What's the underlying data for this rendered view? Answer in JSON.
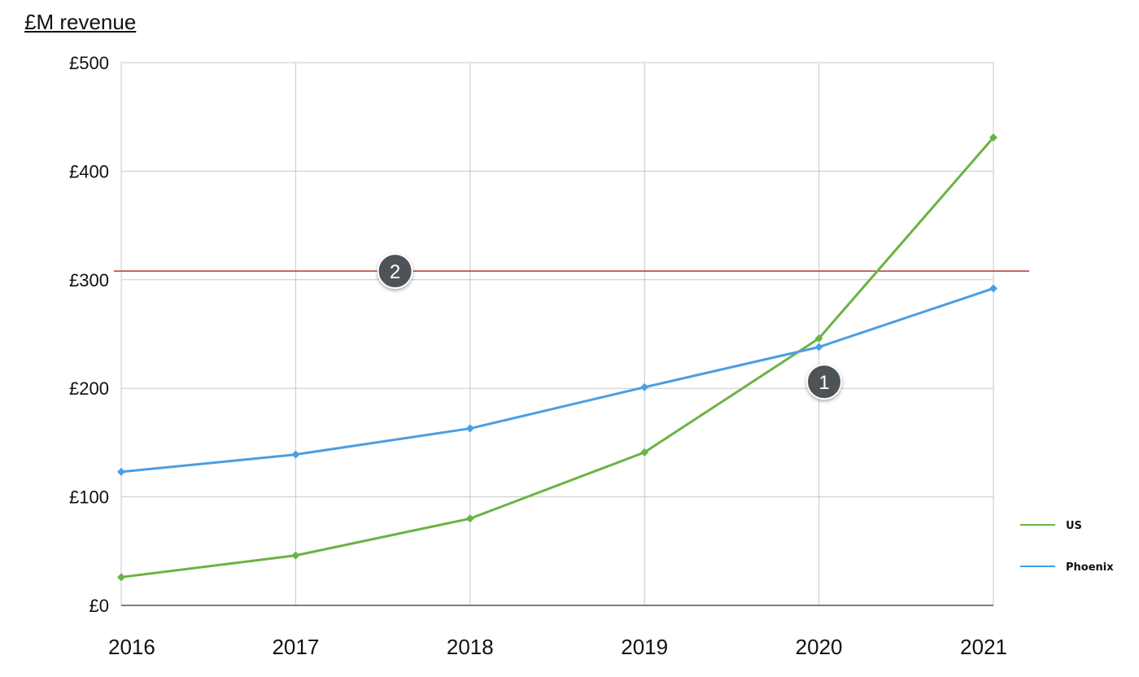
{
  "chart_data": {
    "type": "line",
    "title": "£M revenue",
    "x": [
      "2016",
      "2017",
      "2018",
      "2019",
      "2020",
      "2021"
    ],
    "yticks": [
      "£0",
      "£100",
      "£200",
      "£300",
      "£400",
      "£500"
    ],
    "ylim": [
      0,
      500
    ],
    "grid": true,
    "legend_position": "right",
    "series": [
      {
        "name": "US",
        "color": "#6ab344",
        "values": [
          26,
          46,
          80,
          141,
          246,
          431
        ]
      },
      {
        "name": "Phoenix",
        "color": "#4a9ee3",
        "values": [
          123,
          139,
          163,
          201,
          238,
          292
        ]
      }
    ],
    "reference_line": {
      "value": 308,
      "color": "#b03a2e"
    },
    "markers": [
      {
        "label": "1",
        "x": 2020.03,
        "y": 206
      },
      {
        "label": "2",
        "x": 2017.57,
        "y": 308
      }
    ]
  }
}
